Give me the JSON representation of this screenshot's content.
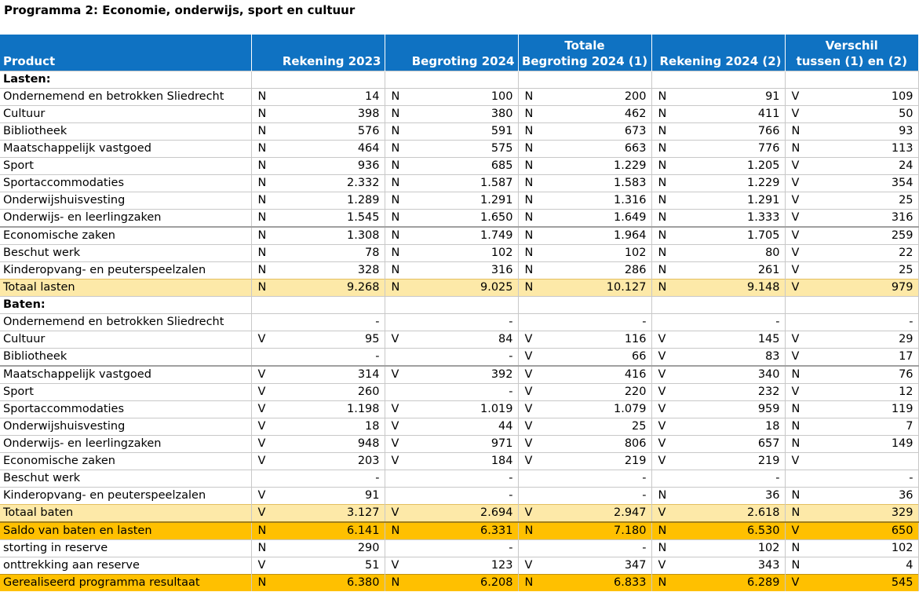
{
  "title": "Programma 2: Economie, onderwijs, sport en cultuur",
  "headers": {
    "product": "Product",
    "rek2023": "Rekening 2023",
    "beg2024": "Begroting 2024",
    "totbeg_line1": "Totale",
    "totbeg_line2": "Begroting 2024 (1)",
    "rek2024": "Rekening 2024 (2)",
    "verschil_line1": "Verschil",
    "verschil_line2": "tussen (1) en (2)"
  },
  "rows": [
    {
      "type": "section",
      "product": "Lasten:",
      "cells": [
        [
          "",
          ""
        ],
        [
          "",
          ""
        ],
        [
          "",
          ""
        ],
        [
          "",
          ""
        ],
        [
          "",
          ""
        ]
      ]
    },
    {
      "type": "row",
      "product": "Ondernemend en betrokken Sliedrecht",
      "cells": [
        [
          "N",
          "14"
        ],
        [
          "N",
          "100"
        ],
        [
          "N",
          "200"
        ],
        [
          "N",
          "91"
        ],
        [
          "V",
          "109"
        ]
      ]
    },
    {
      "type": "row",
      "product": "Cultuur",
      "cells": [
        [
          "N",
          "398"
        ],
        [
          "N",
          "380"
        ],
        [
          "N",
          "462"
        ],
        [
          "N",
          "411"
        ],
        [
          "V",
          "50"
        ]
      ]
    },
    {
      "type": "row",
      "product": "Bibliotheek",
      "cells": [
        [
          "N",
          "576"
        ],
        [
          "N",
          "591"
        ],
        [
          "N",
          "673"
        ],
        [
          "N",
          "766"
        ],
        [
          "N",
          "93"
        ]
      ]
    },
    {
      "type": "row",
      "product": "Maatschappelijk vastgoed",
      "cells": [
        [
          "N",
          "464"
        ],
        [
          "N",
          "575"
        ],
        [
          "N",
          "663"
        ],
        [
          "N",
          "776"
        ],
        [
          "N",
          "113"
        ]
      ]
    },
    {
      "type": "row",
      "product": "Sport",
      "cells": [
        [
          "N",
          "936"
        ],
        [
          "N",
          "685"
        ],
        [
          "N",
          "1.229"
        ],
        [
          "N",
          "1.205"
        ],
        [
          "V",
          "24"
        ]
      ]
    },
    {
      "type": "row",
      "product": "Sportaccommodaties",
      "cells": [
        [
          "N",
          "2.332"
        ],
        [
          "N",
          "1.587"
        ],
        [
          "N",
          "1.583"
        ],
        [
          "N",
          "1.229"
        ],
        [
          "V",
          "354"
        ]
      ]
    },
    {
      "type": "row",
      "product": "Onderwijshuisvesting",
      "cells": [
        [
          "N",
          "1.289"
        ],
        [
          "N",
          "1.291"
        ],
        [
          "N",
          "1.316"
        ],
        [
          "N",
          "1.291"
        ],
        [
          "V",
          "25"
        ]
      ]
    },
    {
      "type": "row",
      "product": "Onderwijs- en leerlingzaken",
      "cells": [
        [
          "N",
          "1.545"
        ],
        [
          "N",
          "1.650"
        ],
        [
          "N",
          "1.649"
        ],
        [
          "N",
          "1.333"
        ],
        [
          "V",
          "316"
        ]
      ]
    },
    {
      "type": "row thick",
      "product": "Economische zaken",
      "cells": [
        [
          "N",
          "1.308"
        ],
        [
          "N",
          "1.749"
        ],
        [
          "N",
          "1.964"
        ],
        [
          "N",
          "1.705"
        ],
        [
          "V",
          "259"
        ]
      ]
    },
    {
      "type": "row",
      "product": "Beschut werk",
      "cells": [
        [
          "N",
          "78"
        ],
        [
          "N",
          "102"
        ],
        [
          "N",
          "102"
        ],
        [
          "N",
          "80"
        ],
        [
          "V",
          "22"
        ]
      ]
    },
    {
      "type": "row",
      "product": "Kinderopvang- en peuterspeelzalen",
      "cells": [
        [
          "N",
          "328"
        ],
        [
          "N",
          "316"
        ],
        [
          "N",
          "286"
        ],
        [
          "N",
          "261"
        ],
        [
          "V",
          "25"
        ]
      ]
    },
    {
      "type": "total",
      "product": "Totaal lasten",
      "cells": [
        [
          "N",
          "9.268"
        ],
        [
          "N",
          "9.025"
        ],
        [
          "N",
          "10.127"
        ],
        [
          "N",
          "9.148"
        ],
        [
          "V",
          "979"
        ]
      ]
    },
    {
      "type": "section",
      "product": "Baten:",
      "cells": [
        [
          "",
          ""
        ],
        [
          "",
          ""
        ],
        [
          "",
          ""
        ],
        [
          "",
          ""
        ],
        [
          "",
          ""
        ]
      ]
    },
    {
      "type": "row",
      "product": "Ondernemend en betrokken Sliedrecht",
      "cells": [
        [
          "",
          "-"
        ],
        [
          "",
          "-"
        ],
        [
          "",
          "-"
        ],
        [
          "",
          "-"
        ],
        [
          "",
          "-"
        ]
      ]
    },
    {
      "type": "row",
      "product": "Cultuur",
      "cells": [
        [
          "V",
          "95"
        ],
        [
          "V",
          "84"
        ],
        [
          "V",
          "116"
        ],
        [
          "V",
          "145"
        ],
        [
          "V",
          "29"
        ]
      ]
    },
    {
      "type": "row",
      "product": "Bibliotheek",
      "cells": [
        [
          "",
          "-"
        ],
        [
          "",
          "-"
        ],
        [
          "V",
          "66"
        ],
        [
          "V",
          "83"
        ],
        [
          "V",
          "17"
        ]
      ]
    },
    {
      "type": "row thick",
      "product": "Maatschappelijk vastgoed",
      "cells": [
        [
          "V",
          "314"
        ],
        [
          "V",
          "392"
        ],
        [
          "V",
          "416"
        ],
        [
          "V",
          "340"
        ],
        [
          "N",
          "76"
        ]
      ]
    },
    {
      "type": "row",
      "product": "Sport",
      "cells": [
        [
          "V",
          "260"
        ],
        [
          "",
          "-"
        ],
        [
          "V",
          "220"
        ],
        [
          "V",
          "232"
        ],
        [
          "V",
          "12"
        ]
      ]
    },
    {
      "type": "row",
      "product": "Sportaccommodaties",
      "cells": [
        [
          "V",
          "1.198"
        ],
        [
          "V",
          "1.019"
        ],
        [
          "V",
          "1.079"
        ],
        [
          "V",
          "959"
        ],
        [
          "N",
          "119"
        ]
      ]
    },
    {
      "type": "row",
      "product": "Onderwijshuisvesting",
      "cells": [
        [
          "V",
          "18"
        ],
        [
          "V",
          "44"
        ],
        [
          "V",
          "25"
        ],
        [
          "V",
          "18"
        ],
        [
          "N",
          "7"
        ]
      ]
    },
    {
      "type": "row",
      "product": "Onderwijs- en leerlingzaken",
      "cells": [
        [
          "V",
          "948"
        ],
        [
          "V",
          "971"
        ],
        [
          "V",
          "806"
        ],
        [
          "V",
          "657"
        ],
        [
          "N",
          "149"
        ]
      ]
    },
    {
      "type": "row",
      "product": "Economische zaken",
      "cells": [
        [
          "V",
          "203"
        ],
        [
          "V",
          "184"
        ],
        [
          "V",
          "219"
        ],
        [
          "V",
          "219"
        ],
        [
          "V",
          ""
        ]
      ]
    },
    {
      "type": "row",
      "product": "Beschut werk",
      "cells": [
        [
          "",
          "-"
        ],
        [
          "",
          "-"
        ],
        [
          "",
          "-"
        ],
        [
          "",
          "-"
        ],
        [
          "",
          "-"
        ]
      ]
    },
    {
      "type": "row",
      "product": "Kinderopvang- en peuterspeelzalen",
      "cells": [
        [
          "V",
          "91"
        ],
        [
          "",
          "-"
        ],
        [
          "",
          "-"
        ],
        [
          "N",
          "36"
        ],
        [
          "N",
          "36"
        ]
      ]
    },
    {
      "type": "total",
      "product": "Totaal baten",
      "cells": [
        [
          "V",
          "3.127"
        ],
        [
          "V",
          "2.694"
        ],
        [
          "V",
          "2.947"
        ],
        [
          "V",
          "2.618"
        ],
        [
          "N",
          "329"
        ]
      ]
    },
    {
      "type": "saldo",
      "product": "Saldo van baten en lasten",
      "cells": [
        [
          "N",
          "6.141"
        ],
        [
          "N",
          "6.331"
        ],
        [
          "N",
          "7.180"
        ],
        [
          "N",
          "6.530"
        ],
        [
          "V",
          "650"
        ]
      ]
    },
    {
      "type": "row",
      "product": "storting in reserve",
      "cells": [
        [
          "N",
          "290"
        ],
        [
          "",
          "-"
        ],
        [
          "",
          "-"
        ],
        [
          "N",
          "102"
        ],
        [
          "N",
          "102"
        ]
      ]
    },
    {
      "type": "row",
      "product": "onttrekking aan reserve",
      "cells": [
        [
          "V",
          "51"
        ],
        [
          "V",
          "123"
        ],
        [
          "V",
          "347"
        ],
        [
          "V",
          "343"
        ],
        [
          "N",
          "4"
        ]
      ]
    },
    {
      "type": "grand",
      "product": "Gerealiseerd programma resultaat",
      "cells": [
        [
          "N",
          "6.380"
        ],
        [
          "N",
          "6.208"
        ],
        [
          "N",
          "6.833"
        ],
        [
          "N",
          "6.289"
        ],
        [
          "V",
          "545"
        ]
      ]
    }
  ]
}
